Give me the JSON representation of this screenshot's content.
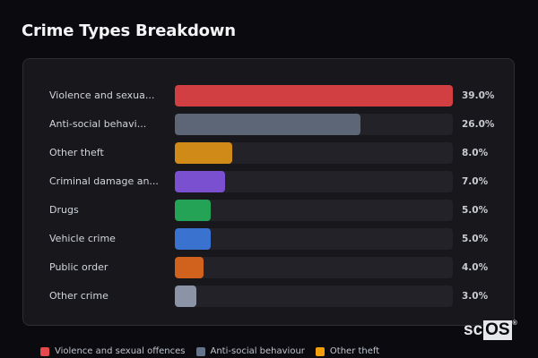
{
  "header": {
    "title": "Crime Types Breakdown"
  },
  "chart_data": {
    "type": "bar",
    "orientation": "horizontal",
    "title": "Crime Types Breakdown",
    "xlabel": "",
    "ylabel": "",
    "xlim": [
      0,
      39
    ],
    "grid": false,
    "categories": [
      "Violence and sexual offences",
      "Anti-social behaviour",
      "Other theft",
      "Criminal damage and arson",
      "Drugs",
      "Vehicle crime",
      "Public order",
      "Other crime"
    ],
    "display_labels": [
      "Violence and sexua...",
      "Anti-social behavi...",
      "Other theft",
      "Criminal damage an...",
      "Drugs",
      "Vehicle crime",
      "Public order",
      "Other crime"
    ],
    "values": [
      39.0,
      26.0,
      8.0,
      7.0,
      5.0,
      5.0,
      4.0,
      3.0
    ],
    "value_labels": [
      "39.0%",
      "26.0%",
      "8.0%",
      "7.0%",
      "5.0%",
      "5.0%",
      "4.0%",
      "3.0%"
    ],
    "colors": [
      "#d13f43",
      "#5c6677",
      "#d08a17",
      "#7a4fd0",
      "#24a356",
      "#3a72d0",
      "#d0621e",
      "#8a94a6"
    ],
    "legend_position": "bottom"
  },
  "legend": [
    {
      "label": "Violence and sexual offences",
      "color": "#e5484d"
    },
    {
      "label": "Anti-social behaviour",
      "color": "#64748b"
    },
    {
      "label": "Other theft",
      "color": "#f59e0b"
    }
  ],
  "watermark": {
    "sc": "sc",
    "os": "OS",
    "reg": "®"
  }
}
